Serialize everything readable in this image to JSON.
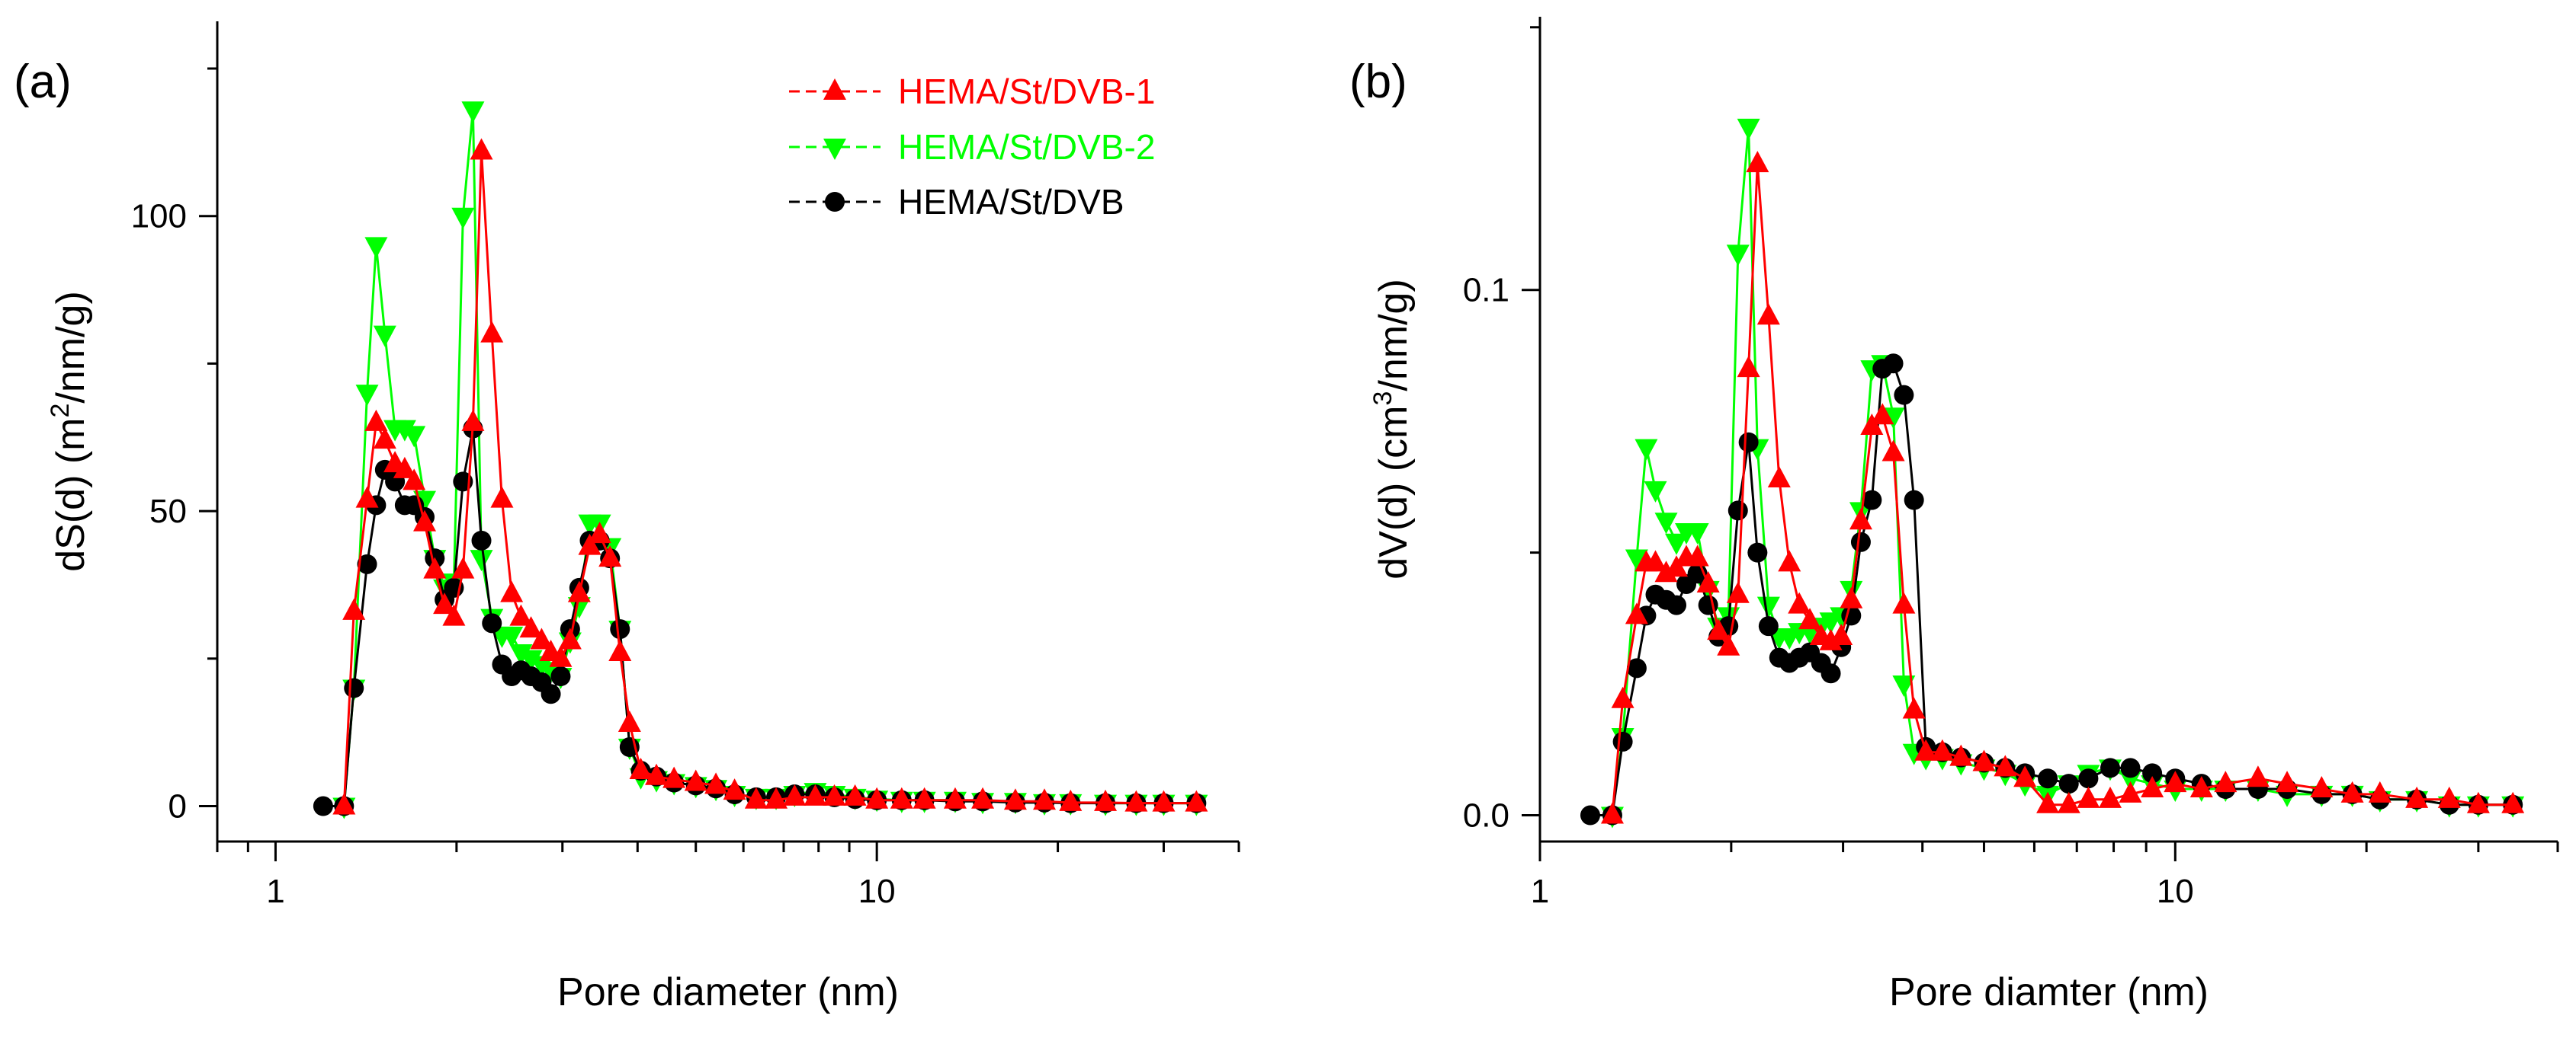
{
  "chart_data": [
    {
      "type": "line",
      "panel_label": "(a)",
      "xlabel": "Pore diameter (nm)",
      "ylabel": "dS(d) (m²/nm/g)",
      "ylabel_parts": {
        "pre": "dS(d) (m",
        "sup": "2",
        "post": "/nm/g)"
      },
      "xscale": "log",
      "xlim": [
        0.8,
        40
      ],
      "ylim": [
        -6,
        133
      ],
      "xticks": [
        1,
        10
      ],
      "yticks": [
        0,
        50,
        100
      ],
      "legend_position": "top-right",
      "series": [
        {
          "name": "HEMA/St/DVB-1",
          "color": "#ff0000",
          "marker": "triangle-up",
          "x": [
            1.3,
            1.35,
            1.42,
            1.47,
            1.52,
            1.58,
            1.64,
            1.7,
            1.77,
            1.84,
            1.91,
            1.98,
            2.05,
            2.13,
            2.2,
            2.29,
            2.38,
            2.47,
            2.56,
            2.66,
            2.77,
            2.87,
            2.98,
            3.09,
            3.2,
            3.33,
            3.46,
            3.6,
            3.74,
            3.88,
            4.05,
            4.3,
            4.6,
            5.0,
            5.4,
            5.8,
            6.3,
            6.8,
            7.3,
            7.9,
            8.5,
            9.2,
            10,
            11,
            12,
            13.5,
            15,
            17,
            19,
            21,
            24,
            27,
            30,
            34
          ],
          "y": [
            0,
            33,
            52,
            65,
            62,
            58,
            57,
            55,
            48,
            40,
            34,
            32,
            40,
            65,
            111,
            80,
            52,
            36,
            32,
            30,
            28,
            26,
            25,
            28,
            36,
            44,
            46,
            42,
            26,
            14,
            6,
            5,
            4.5,
            4,
            3.5,
            2.5,
            1,
            1,
            1.5,
            1.5,
            1.5,
            1.5,
            1,
            1,
            1,
            1,
            1,
            0.8,
            0.8,
            0.6,
            0.6,
            0.5,
            0.5,
            0.5
          ]
        },
        {
          "name": "HEMA/St/DVB-2",
          "color": "#00ff00",
          "marker": "triangle-down",
          "x": [
            1.3,
            1.35,
            1.42,
            1.47,
            1.52,
            1.58,
            1.64,
            1.7,
            1.77,
            1.84,
            1.91,
            1.98,
            2.05,
            2.13,
            2.2,
            2.29,
            2.38,
            2.47,
            2.56,
            2.66,
            2.77,
            2.87,
            2.98,
            3.09,
            3.2,
            3.33,
            3.46,
            3.6,
            3.74,
            3.88,
            4.05,
            4.3,
            4.6,
            5.0,
            5.4,
            5.8,
            6.3,
            6.8,
            7.3,
            7.9,
            8.5,
            9.2,
            10,
            11,
            12,
            13.5,
            15,
            17,
            19,
            21,
            24,
            27,
            30,
            34
          ],
          "y": [
            0,
            20,
            70,
            95,
            80,
            64,
            64,
            63,
            52,
            42,
            37,
            38,
            100,
            118,
            42,
            32,
            29,
            29,
            26,
            25,
            24,
            23,
            22,
            28,
            34,
            48,
            48,
            44,
            30,
            10,
            5,
            4.5,
            4,
            3.5,
            3,
            2,
            1.5,
            1.5,
            2,
            2.5,
            2,
            1.5,
            1.2,
            1,
            1,
            1,
            0.8,
            0.8,
            0.6,
            0.6,
            0.5,
            0.5,
            0.5,
            0.5
          ]
        },
        {
          "name": "HEMA/St/DVB",
          "color": "#000000",
          "marker": "circle",
          "x": [
            1.2,
            1.3,
            1.35,
            1.42,
            1.47,
            1.52,
            1.58,
            1.64,
            1.7,
            1.77,
            1.84,
            1.91,
            1.98,
            2.05,
            2.13,
            2.2,
            2.29,
            2.38,
            2.47,
            2.56,
            2.66,
            2.77,
            2.87,
            2.98,
            3.09,
            3.2,
            3.33,
            3.46,
            3.6,
            3.74,
            3.88,
            4.05,
            4.3,
            4.6,
            5.0,
            5.4,
            5.8,
            6.3,
            6.8,
            7.3,
            7.9,
            8.5,
            9.2,
            10,
            11,
            12,
            13.5,
            15,
            17,
            19,
            21,
            24,
            27,
            30,
            34
          ],
          "y": [
            0,
            0,
            20,
            41,
            51,
            57,
            55,
            51,
            51,
            49,
            42,
            35,
            37,
            55,
            64,
            45,
            31,
            24,
            22,
            23,
            22,
            21,
            19,
            22,
            30,
            37,
            45,
            45,
            42,
            30,
            10,
            6,
            5,
            4,
            3.5,
            3,
            2,
            1.5,
            1.5,
            2,
            2,
            1.5,
            1.2,
            1,
            1,
            1,
            0.8,
            0.8,
            0.6,
            0.6,
            0.5,
            0.5,
            0.5,
            0.5,
            0.5
          ]
        }
      ]
    },
    {
      "type": "line",
      "panel_label": "(b)",
      "xlabel": "Pore diamter (nm)",
      "ylabel": "dV(d) (cm³/nm/g)",
      "ylabel_parts": {
        "pre": "dV(d) (cm",
        "sup": "3",
        "post": "/nm/g)"
      },
      "xscale": "log",
      "xlim": [
        1,
        40
      ],
      "ylim": [
        -0.005,
        0.152
      ],
      "xticks": [
        1,
        10
      ],
      "yticks": [
        0.0,
        0.1
      ],
      "ytick_labels": [
        "0.0",
        "0.1"
      ],
      "series": [
        {
          "name": "HEMA/St/DVB-1",
          "color": "#ff0000",
          "marker": "triangle-up",
          "x": [
            1.3,
            1.35,
            1.42,
            1.47,
            1.52,
            1.58,
            1.64,
            1.7,
            1.77,
            1.84,
            1.91,
            1.98,
            2.05,
            2.13,
            2.2,
            2.29,
            2.38,
            2.47,
            2.56,
            2.66,
            2.77,
            2.87,
            2.98,
            3.09,
            3.2,
            3.33,
            3.46,
            3.6,
            3.74,
            3.88,
            4.05,
            4.3,
            4.6,
            5.0,
            5.4,
            5.8,
            6.3,
            6.8,
            7.3,
            7.9,
            8.5,
            9.2,
            10,
            11,
            12,
            13.5,
            15,
            17,
            19,
            21,
            24,
            27,
            30,
            34
          ],
          "y": [
            0,
            0.022,
            0.038,
            0.048,
            0.048,
            0.046,
            0.047,
            0.049,
            0.049,
            0.044,
            0.035,
            0.032,
            0.042,
            0.085,
            0.124,
            0.095,
            0.064,
            0.048,
            0.04,
            0.037,
            0.034,
            0.033,
            0.034,
            0.041,
            0.056,
            0.074,
            0.076,
            0.069,
            0.04,
            0.02,
            0.012,
            0.012,
            0.011,
            0.01,
            0.009,
            0.007,
            0.002,
            0.002,
            0.003,
            0.003,
            0.004,
            0.005,
            0.006,
            0.005,
            0.006,
            0.007,
            0.006,
            0.005,
            0.004,
            0.004,
            0.003,
            0.003,
            0.002,
            0.002
          ]
        },
        {
          "name": "HEMA/St/DVB-2",
          "color": "#00ff00",
          "marker": "triangle-down",
          "x": [
            1.3,
            1.35,
            1.42,
            1.47,
            1.52,
            1.58,
            1.64,
            1.7,
            1.77,
            1.84,
            1.91,
            1.98,
            2.05,
            2.13,
            2.2,
            2.29,
            2.38,
            2.47,
            2.56,
            2.66,
            2.77,
            2.87,
            2.98,
            3.09,
            3.2,
            3.33,
            3.46,
            3.6,
            3.74,
            3.88,
            4.05,
            4.3,
            4.6,
            5.0,
            5.4,
            5.8,
            6.3,
            6.8,
            7.3,
            7.9,
            8.5,
            9.2,
            10,
            11,
            12,
            13.5,
            15,
            17,
            19,
            21,
            24,
            27,
            30,
            34
          ],
          "y": [
            0,
            0.015,
            0.049,
            0.07,
            0.062,
            0.056,
            0.052,
            0.054,
            0.054,
            0.043,
            0.036,
            0.038,
            0.107,
            0.131,
            0.07,
            0.04,
            0.034,
            0.034,
            0.035,
            0.035,
            0.036,
            0.037,
            0.038,
            0.043,
            0.058,
            0.085,
            0.086,
            0.076,
            0.025,
            0.012,
            0.011,
            0.011,
            0.01,
            0.009,
            0.008,
            0.006,
            0.004,
            0.006,
            0.008,
            0.009,
            0.007,
            0.006,
            0.005,
            0.005,
            0.005,
            0.005,
            0.004,
            0.004,
            0.004,
            0.003,
            0.003,
            0.002,
            0.002,
            0.002
          ]
        },
        {
          "name": "HEMA/St/DVB",
          "color": "#000000",
          "marker": "circle",
          "x": [
            1.2,
            1.3,
            1.35,
            1.42,
            1.47,
            1.52,
            1.58,
            1.64,
            1.7,
            1.77,
            1.84,
            1.91,
            1.98,
            2.05,
            2.13,
            2.2,
            2.29,
            2.38,
            2.47,
            2.56,
            2.66,
            2.77,
            2.87,
            2.98,
            3.09,
            3.2,
            3.33,
            3.46,
            3.6,
            3.74,
            3.88,
            4.05,
            4.3,
            4.6,
            5.0,
            5.4,
            5.8,
            6.3,
            6.8,
            7.3,
            7.9,
            8.5,
            9.2,
            10,
            11,
            12,
            13.5,
            15,
            17,
            19,
            21,
            24,
            27,
            30,
            34
          ],
          "y": [
            0,
            0,
            0.014,
            0.028,
            0.038,
            0.042,
            0.041,
            0.04,
            0.044,
            0.046,
            0.04,
            0.034,
            0.036,
            0.058,
            0.071,
            0.05,
            0.036,
            0.03,
            0.029,
            0.03,
            0.031,
            0.029,
            0.027,
            0.032,
            0.038,
            0.052,
            0.06,
            0.085,
            0.086,
            0.08,
            0.06,
            0.013,
            0.012,
            0.011,
            0.01,
            0.009,
            0.008,
            0.007,
            0.006,
            0.007,
            0.009,
            0.009,
            0.008,
            0.007,
            0.006,
            0.005,
            0.005,
            0.005,
            0.004,
            0.004,
            0.003,
            0.003,
            0.002,
            0.002,
            0.002
          ]
        }
      ]
    }
  ]
}
